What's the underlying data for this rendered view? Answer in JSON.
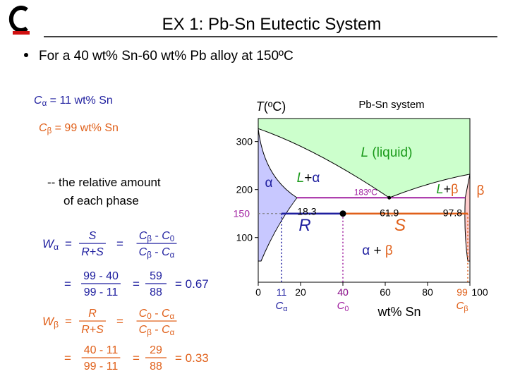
{
  "header": {
    "title": "EX 1:  Pb-Sn Eutectic System"
  },
  "bullet": "For a 40 wt% Sn-60 wt% Pb alloy at 150ºC",
  "given": [
    {
      "color": "#1f1f9f",
      "parts": [
        {
          "t": "C",
          "sub": "α"
        },
        {
          "t": " = 11 wt% Sn"
        }
      ]
    },
    {
      "color": "#e0601a",
      "parts": [
        {
          "t": "C",
          "sub": "β"
        },
        {
          "t": " = 99 wt% Sn"
        }
      ]
    }
  ],
  "task": [
    "-- the relative amount",
    "of each phase"
  ],
  "equations": [
    {
      "color": "#1f1f9f",
      "rows": [
        [
          {
            "parts": [
              {
                "t": "W",
                "sub": "α"
              }
            ]
          },
          {
            "parts": [
              {
                "t": "="
              }
            ]
          },
          {
            "num": [
              {
                "t": "S"
              }
            ],
            "den": [
              {
                "t": "R+S"
              }
            ]
          },
          {
            "parts": [
              {
                "t": "="
              }
            ]
          },
          {
            "num": [
              {
                "t": "C",
                "sub": "β"
              },
              {
                "t": " - "
              },
              {
                "t": "C",
                "sub": "0"
              }
            ],
            "den": [
              {
                "t": "C",
                "sub": "β"
              },
              {
                "t": " - "
              },
              {
                "t": "C",
                "sub": "α"
              }
            ]
          }
        ],
        [
          {
            "parts": [
              {
                "t": "="
              }
            ]
          },
          {
            "num": [
              {
                "t": "99 - 40"
              }
            ],
            "den": [
              {
                "t": "99 - 11"
              }
            ]
          },
          {
            "parts": [
              {
                "t": "="
              }
            ]
          },
          {
            "num": [
              {
                "t": "59"
              }
            ],
            "den": [
              {
                "t": "88"
              }
            ]
          },
          {
            "parts": [
              {
                "t": "= 0.67"
              }
            ]
          }
        ]
      ]
    },
    {
      "color": "#e0601a",
      "rows": [
        [
          {
            "parts": [
              {
                "t": "W",
                "sub": "β"
              }
            ]
          },
          {
            "parts": [
              {
                "t": "="
              }
            ]
          },
          {
            "num": [
              {
                "t": "R"
              }
            ],
            "den": [
              {
                "t": "R+S"
              }
            ]
          },
          {
            "parts": [
              {
                "t": "="
              }
            ]
          },
          {
            "num": [
              {
                "t": "C",
                "sub": "0"
              },
              {
                "t": " - "
              },
              {
                "t": "C",
                "sub": "α"
              }
            ],
            "den": [
              {
                "t": "C",
                "sub": "β"
              },
              {
                "t": " - "
              },
              {
                "t": "C",
                "sub": "α"
              }
            ]
          }
        ],
        [
          {
            "parts": [
              {
                "t": "="
              }
            ]
          },
          {
            "num": [
              {
                "t": "40 - 11"
              }
            ],
            "den": [
              {
                "t": "99 - 11"
              }
            ]
          },
          {
            "parts": [
              {
                "t": "="
              }
            ]
          },
          {
            "num": [
              {
                "t": "29"
              }
            ],
            "den": [
              {
                "t": "88"
              }
            ]
          },
          {
            "parts": [
              {
                "t": "= 0.33"
              }
            ]
          }
        ]
      ]
    }
  ],
  "diagram": {
    "title": "Pb-Sn system",
    "ylabel": [
      {
        "t": "T"
      },
      {
        "t": "(ºC)"
      }
    ],
    "xlabel": "wt% Sn",
    "xlim": [
      0,
      100
    ],
    "ylim": [
      7,
      348
    ],
    "xticks": [
      0,
      20,
      40,
      60,
      80,
      100
    ],
    "yticks": [
      100,
      200,
      300
    ],
    "pb_melt": 327,
    "sn_melt": 232,
    "eutectic": {
      "T": {
        "value": 183,
        "label": "183ºC"
      },
      "C": 61.9,
      "alpha": 18.3,
      "beta": 97.8
    },
    "alloy": {
      "C0": 40,
      "T": 150,
      "C_alpha": 11,
      "C_beta": 99
    },
    "colors": {
      "liquid": "#ccffcc",
      "alpha": "#c8c8ff",
      "beta": "#ffcccc",
      "eutectic": "#a020a0",
      "tie_alpha": "#1f1f9f",
      "tie_beta": "#e0601a",
      "c0": "#a020a0"
    },
    "fields": {
      "alpha": [
        {
          "t": "α",
          "color": "#1f1f9f"
        }
      ],
      "l_alpha": [
        {
          "t": "L",
          "color": "#1a9a1a"
        },
        {
          "t": "+",
          "color": "#000000"
        },
        {
          "t": "α",
          "color": "#1f1f9f"
        }
      ],
      "liquid": [
        {
          "t": "L",
          "color": "#1a9a1a"
        },
        {
          "t": " (liquid)",
          "color": "#1a9a1a"
        }
      ],
      "l_beta": [
        {
          "t": "L",
          "color": "#1a9a1a"
        },
        {
          "t": "+",
          "color": "#000000"
        },
        {
          "t": "β",
          "color": "#e0601a"
        }
      ],
      "beta": [
        {
          "t": "β",
          "color": "#e0601a"
        }
      ],
      "alpha_beta": [
        {
          "t": "α",
          "color": "#1f1f9f"
        },
        {
          "t": " + ",
          "color": "#000000"
        },
        {
          "t": "β",
          "color": "#e0601a"
        }
      ],
      "R": [
        {
          "t": "R",
          "color": "#1f1f9f"
        }
      ],
      "S": [
        {
          "t": "S",
          "color": "#e0601a"
        }
      ]
    },
    "c_alpha_label": [
      {
        "t": "C",
        "sub": "α",
        "color": "#1f1f9f"
      }
    ],
    "c0_label": [
      {
        "t": "C",
        "sub": "0",
        "color": "#a020a0"
      }
    ],
    "c_beta_label": [
      {
        "t": "C",
        "sub": "β",
        "color": "#e0601a"
      }
    ]
  }
}
